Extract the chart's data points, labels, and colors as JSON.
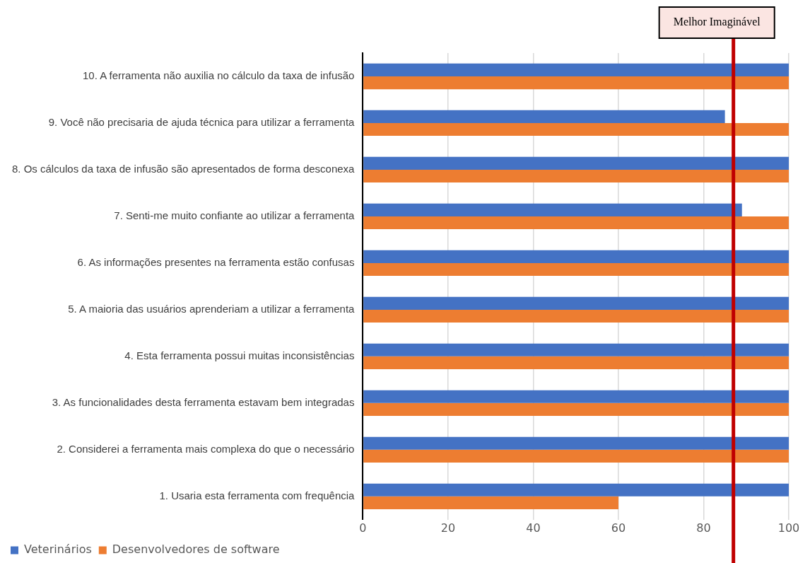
{
  "chart_data": {
    "type": "bar",
    "orientation": "horizontal",
    "categories": [
      "10. A ferramenta não auxilia no cálculo da taxa de infusão",
      "9. Você não precisaria de ajuda técnica para utilizar a ferramenta",
      "8. Os cálculos da taxa de infusão são apresentados de forma desconexa",
      "7. Senti-me muito confiante ao utilizar a ferramenta",
      "6. As informações presentes na ferramenta estão confusas",
      "5. A maioria das usuários aprenderiam a utilizar a ferramenta",
      "4. Esta ferramenta possui muitas inconsistências",
      "3. As funcionalidades desta ferramenta estavam bem integradas",
      "2. Considerei a ferramenta mais complexa do que o necessário",
      "1. Usaria esta ferramenta com frequência"
    ],
    "series": [
      {
        "name": "Veterinários",
        "color": "#4472c4",
        "values": [
          100,
          85,
          100,
          89,
          100,
          100,
          100,
          100,
          100,
          100
        ]
      },
      {
        "name": "Desenvolvedores de software",
        "color": "#ed7d31",
        "values": [
          100,
          100,
          100,
          100,
          100,
          100,
          100,
          100,
          100,
          60
        ]
      }
    ],
    "xlim": [
      0,
      100
    ],
    "xticks": [
      0,
      20,
      40,
      60,
      80,
      100
    ],
    "grid": "x",
    "legend": "bottom left",
    "ref_lines": [
      {
        "axis": "x",
        "value": 87,
        "label": "Melhor Imaginável",
        "color": "#c00000"
      }
    ]
  }
}
